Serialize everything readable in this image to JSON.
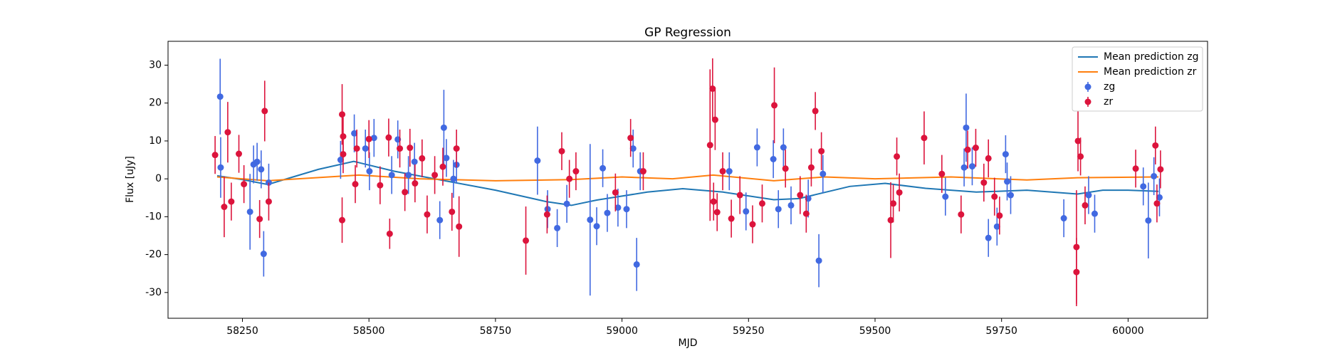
{
  "chart_data": {
    "type": "errorbar",
    "title": "GP Regression",
    "xlabel": "MJD",
    "ylabel": "Flux [uJy]",
    "xlim": [
      58103,
      60157
    ],
    "ylim": [
      -36.8,
      36.3
    ],
    "xticks": [
      58250,
      58500,
      58750,
      59000,
      59250,
      59500,
      59750,
      60000
    ],
    "yticks": [
      -30,
      -20,
      -10,
      0,
      10,
      20,
      30
    ],
    "legend": "upper right",
    "grid": false,
    "series": [
      {
        "name": "Mean prediction zg",
        "kind": "line",
        "color": "#1f77b4",
        "x": [
          58200,
          58250,
          58300,
          58350,
          58400,
          58470,
          58550,
          58650,
          58750,
          58850,
          58900,
          58950,
          59050,
          59120,
          59200,
          59300,
          59350,
          59450,
          59520,
          59600,
          59700,
          59800,
          59900,
          59950,
          60000,
          60060
        ],
        "values": [
          0.8,
          -0.2,
          -1.5,
          0.5,
          2.5,
          4.6,
          2,
          -0.5,
          -3,
          -6,
          -7,
          -5.6,
          -3.5,
          -2.6,
          -3.5,
          -5.5,
          -5.2,
          -2,
          -1.2,
          -2.5,
          -3.5,
          -3,
          -4,
          -3,
          -3,
          -3.3
        ]
      },
      {
        "name": "Mean prediction zr",
        "kind": "line",
        "color": "#ff7f0e",
        "x": [
          58200,
          58300,
          58480,
          58600,
          58750,
          58900,
          59000,
          59100,
          59180,
          59300,
          59400,
          59500,
          59650,
          59800,
          59900,
          60060
        ],
        "values": [
          0.5,
          -0.5,
          1,
          0,
          -0.5,
          -0.2,
          0.5,
          0,
          1,
          -0.5,
          0.5,
          0,
          0.5,
          -0.3,
          0.3,
          0.5
        ]
      },
      {
        "name": "zg",
        "kind": "points",
        "color": "#4169e1",
        "x": [
          58206,
          58207,
          58265,
          58272,
          58279,
          58287,
          58292,
          58302,
          58444,
          58471,
          58493,
          58501,
          58510,
          58545,
          58557,
          58578,
          58590,
          58640,
          58648,
          58653,
          58667,
          58673,
          58833,
          58853,
          58872,
          58891,
          58937,
          58950,
          58962,
          58971,
          58992,
          59009,
          59022,
          59029,
          59036,
          59212,
          59245,
          59267,
          59299,
          59309,
          59319,
          59334,
          59368,
          59389,
          59397,
          59639,
          59676,
          59680,
          59692,
          59724,
          59741,
          59758,
          59761,
          59768,
          59873,
          59922,
          59934,
          60030,
          60040,
          60051,
          60062
        ],
        "values": [
          21.7,
          3,
          -8.7,
          3.8,
          4.5,
          2.5,
          -19.8,
          -1,
          5,
          12,
          8,
          2,
          10.8,
          1,
          10.4,
          1,
          4.5,
          -10.9,
          13.5,
          5.5,
          0,
          3.7,
          4.8,
          -8,
          -13,
          -6.6,
          -10.8,
          -12.5,
          2.8,
          -9,
          -7.6,
          -8,
          8,
          -22.6,
          2,
          2,
          -8.6,
          8.3,
          5.2,
          -8,
          8.3,
          -7,
          -5.2,
          -21.6,
          1.3,
          -4.7,
          3,
          13.5,
          3.3,
          -15.6,
          -12.6,
          6.5,
          -0.7,
          -4.3,
          -10.4,
          -4.3,
          -9.2,
          -2,
          -11,
          0.7,
          -4.9
        ],
        "errors": [
          10,
          8,
          10,
          5,
          5,
          5,
          6,
          5,
          5,
          5,
          5,
          5,
          5,
          5,
          5,
          5,
          5,
          5,
          10,
          5,
          5,
          5,
          9,
          5,
          5,
          5,
          20,
          5,
          5,
          5,
          5,
          5,
          5,
          7,
          5,
          5,
          5,
          5,
          5,
          5,
          5,
          5,
          5,
          7,
          5,
          5,
          5,
          9,
          5,
          5,
          5,
          5,
          5,
          5,
          5,
          5,
          5,
          5,
          10,
          5,
          5
        ]
      },
      {
        "name": "zr",
        "kind": "points",
        "color": "#dc143c",
        "x": [
          58196,
          58214,
          58221,
          58228,
          58243,
          58253,
          58284,
          58294,
          58302,
          58447,
          58447,
          58449,
          58449,
          58473,
          58476,
          58500,
          58522,
          58539,
          58541,
          58561,
          58571,
          58581,
          58591,
          58605,
          58615,
          58630,
          58646,
          58664,
          58678,
          58673,
          58810,
          58852,
          58881,
          58896,
          58909,
          58987,
          59017,
          59042,
          59174,
          59179,
          59181,
          59184,
          59188,
          59199,
          59216,
          59233,
          59258,
          59277,
          59301,
          59323,
          59352,
          59364,
          59374,
          59382,
          59394,
          59531,
          59536,
          59543,
          59548,
          59597,
          59632,
          59670,
          59683,
          59699,
          59715,
          59724,
          59736,
          59746,
          59898,
          59898,
          59901,
          59906,
          59915,
          60015,
          60054,
          60057,
          60064
        ],
        "values": [
          6.3,
          -7.4,
          12.3,
          -6,
          6.6,
          -1.4,
          -10.6,
          17.9,
          -6,
          -10.9,
          17,
          11.2,
          6.5,
          -1.4,
          8,
          10.5,
          -1.7,
          10.9,
          -14.5,
          8,
          -3.5,
          8.2,
          -1.2,
          5.4,
          -9.4,
          1,
          3.2,
          -8.7,
          -12.6,
          8,
          -16.3,
          -9.4,
          7.3,
          0,
          2,
          -3.6,
          10.8,
          2,
          8.9,
          23.8,
          -6,
          15.6,
          -8.8,
          2,
          -10.5,
          -4.3,
          -12,
          -6.5,
          19.4,
          2.7,
          -4.3,
          -9.2,
          3,
          17.9,
          7.3,
          -10.9,
          -6.5,
          5.9,
          -3.6,
          10.8,
          1.3,
          -9.4,
          7.7,
          8.2,
          -1,
          5.4,
          -4.7,
          -9.7,
          -18,
          -24.6,
          10,
          5.9,
          -7,
          2.7,
          8.8,
          -6.5,
          2.5
        ],
        "errors": [
          5,
          8,
          8,
          5,
          5,
          5,
          5,
          8,
          5,
          6,
          8,
          5,
          5,
          5,
          5,
          5,
          5,
          5,
          4,
          5,
          5,
          5,
          5,
          5,
          5,
          5,
          5,
          5,
          8,
          5,
          9,
          5,
          5,
          5,
          5,
          5,
          5,
          5,
          20,
          8,
          5,
          8,
          5,
          5,
          5,
          5,
          5,
          5,
          10,
          5,
          5,
          5,
          5,
          5,
          5,
          10,
          5,
          5,
          5,
          7,
          5,
          5,
          5,
          5,
          5,
          5,
          5,
          5,
          15,
          9,
          8,
          5,
          5,
          5,
          5,
          5,
          5
        ]
      }
    ]
  }
}
